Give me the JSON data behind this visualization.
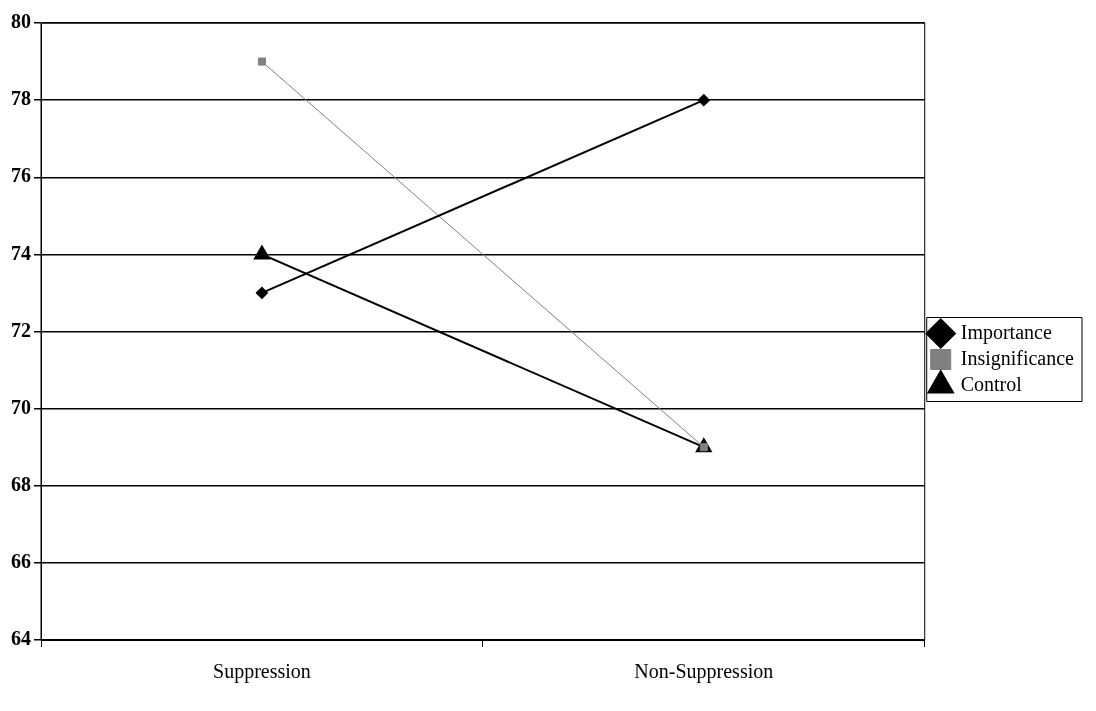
{
  "chart_data": {
    "type": "line",
    "categories": [
      "Suppression",
      "Non-Suppression"
    ],
    "series": [
      {
        "name": "Importance",
        "color": "#000000",
        "values": [
          73,
          78
        ],
        "marker": "diamond"
      },
      {
        "name": "Insignificance",
        "color": "#808080",
        "values": [
          79,
          69
        ],
        "marker": "square"
      },
      {
        "name": "Control",
        "color": "#000000",
        "values": [
          74,
          69
        ],
        "marker": "triangle"
      }
    ],
    "ylim": [
      64,
      80
    ],
    "yticks": [
      64,
      66,
      68,
      70,
      72,
      74,
      76,
      78,
      80
    ],
    "grid": "y",
    "legend": "right",
    "line_style": "solid"
  }
}
